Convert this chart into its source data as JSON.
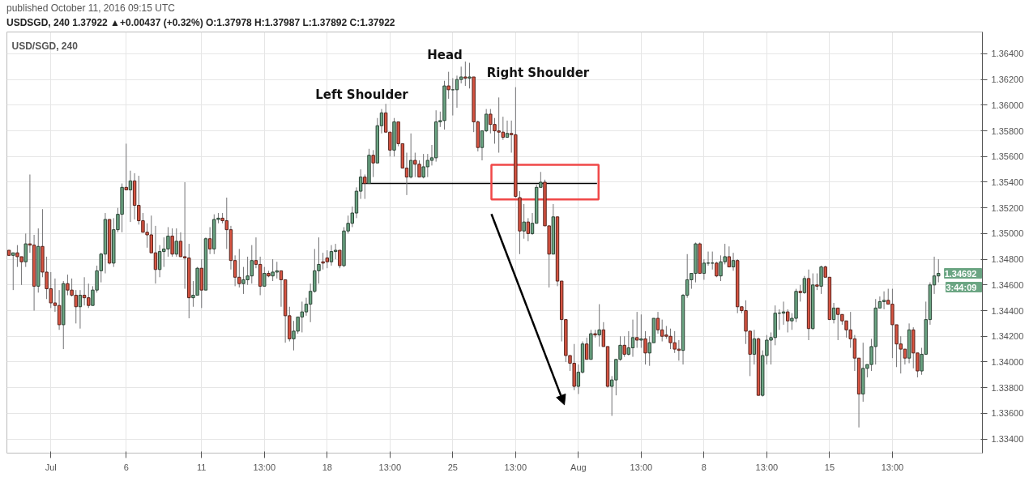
{
  "chart_data": {
    "type": "candlestick",
    "title": "published October 11, 2016 09:15 UTC",
    "subtitle": "USDSGD, 240  1.37922 ▲+0.00437 (+0.32%)  O:1.37978  H:1.37987  L:1.37892  C:1.37922",
    "categories": [
      null,
      null,
      null,
      null,
      null,
      null,
      null,
      null,
      null,
      null,
      "Jul",
      null,
      null,
      null,
      null,
      null,
      null,
      null,
      null,
      null,
      null,
      null,
      null,
      null,
      null,
      null,
      null,
      null,
      "6",
      null,
      null,
      null,
      null,
      null,
      null,
      null,
      null,
      null,
      null,
      null,
      null,
      null,
      null,
      null,
      null,
      null,
      "11",
      null,
      null,
      null,
      null,
      null,
      null,
      null,
      null,
      null,
      null,
      null,
      null,
      null,
      null,
      "13:00",
      null,
      null,
      null,
      null,
      null,
      null,
      null,
      null,
      null,
      null,
      null,
      null,
      null,
      null,
      "18",
      null,
      null,
      null,
      null,
      null,
      null,
      null,
      null,
      null,
      null,
      null,
      null,
      null,
      null,
      "13:00",
      null,
      null,
      null,
      null,
      null,
      null,
      null,
      null,
      null,
      null,
      null,
      null,
      null,
      null,
      "25",
      null,
      null,
      null,
      null,
      null,
      null,
      null,
      null,
      null,
      null,
      null,
      null,
      null,
      null,
      "13:00",
      null,
      null,
      null,
      null,
      null,
      null,
      null,
      null,
      null,
      null,
      null,
      null,
      null,
      null,
      "Aug",
      null,
      null,
      null,
      null,
      null,
      null,
      null,
      null,
      null,
      null,
      null,
      null,
      null,
      null,
      "13:00",
      null,
      null,
      null,
      null,
      null,
      null,
      null,
      null,
      null,
      null,
      null,
      null,
      null,
      null,
      "8",
      null,
      null,
      null,
      null,
      null,
      null,
      null,
      null,
      null,
      null,
      null,
      null,
      null,
      null,
      "13:00",
      null,
      null,
      null,
      null,
      null,
      null,
      null,
      null,
      null,
      null,
      null,
      null,
      null,
      null,
      "15",
      null,
      null,
      null,
      null,
      null,
      null,
      null,
      null,
      null,
      null,
      null,
      null,
      null,
      null,
      "13:00",
      null,
      null,
      null,
      null,
      null,
      null,
      null,
      null,
      null,
      null,
      null,
      null,
      null,
      null,
      null,
      null,
      null,
      null,
      null,
      null,
      null
    ],
    "ohlc": [
      [
        1.3487,
        1.3487,
        1.3483,
        1.3483
      ],
      [
        1.3483,
        1.3485,
        1.3456,
        1.3485
      ],
      [
        1.3485,
        1.3491,
        1.3474,
        1.3482
      ],
      [
        1.3482,
        1.3482,
        1.346,
        1.3478
      ],
      [
        1.3478,
        1.35,
        1.3474,
        1.3492
      ],
      [
        1.3492,
        1.3546,
        1.3485,
        1.3491
      ],
      [
        1.3491,
        1.3499,
        1.344,
        1.3459
      ],
      [
        1.3459,
        1.3504,
        1.3454,
        1.349
      ],
      [
        1.349,
        1.3519,
        1.3466,
        1.347
      ],
      [
        1.347,
        1.3482,
        1.3449,
        1.3457
      ],
      [
        1.3457,
        1.347,
        1.3442,
        1.3446
      ],
      [
        1.3446,
        1.3465,
        1.3439,
        1.3444
      ],
      [
        1.3444,
        1.3456,
        1.3425,
        1.3429
      ],
      [
        1.3429,
        1.3463,
        1.341,
        1.3461
      ],
      [
        1.3461,
        1.3468,
        1.3452,
        1.3456
      ],
      [
        1.3456,
        1.3465,
        1.3451,
        1.3452
      ],
      [
        1.3452,
        1.3456,
        1.343,
        1.3443
      ],
      [
        1.3443,
        1.3456,
        1.3426,
        1.3452
      ],
      [
        1.3452,
        1.3466,
        1.3444,
        1.345
      ],
      [
        1.345,
        1.3461,
        1.3442,
        1.3444
      ],
      [
        1.3444,
        1.3459,
        1.3444,
        1.3456
      ],
      [
        1.3456,
        1.3475,
        1.3454,
        1.3471
      ],
      [
        1.3471,
        1.3485,
        1.3462,
        1.3484
      ],
      [
        1.3484,
        1.3516,
        1.3469,
        1.3511
      ],
      [
        1.3511,
        1.3511,
        1.3476,
        1.3477
      ],
      [
        1.3477,
        1.3512,
        1.3474,
        1.3503
      ],
      [
        1.3503,
        1.352,
        1.3501,
        1.3515
      ],
      [
        1.3515,
        1.3539,
        1.3501,
        1.3536
      ],
      [
        1.3536,
        1.357,
        1.3534,
        1.3534
      ],
      [
        1.3534,
        1.3549,
        1.3509,
        1.3541
      ],
      [
        1.3541,
        1.3547,
        1.3511,
        1.3522
      ],
      [
        1.3522,
        1.3545,
        1.3507,
        1.351
      ],
      [
        1.351,
        1.3516,
        1.3501,
        1.3501
      ],
      [
        1.3501,
        1.3508,
        1.3489,
        1.3499
      ],
      [
        1.3499,
        1.3514,
        1.3485,
        1.3485
      ],
      [
        1.3485,
        1.3506,
        1.3461,
        1.3472
      ],
      [
        1.3472,
        1.3491,
        1.3466,
        1.3486
      ],
      [
        1.3486,
        1.3497,
        1.3474,
        1.3488
      ],
      [
        1.3488,
        1.3505,
        1.3482,
        1.3498
      ],
      [
        1.3498,
        1.3504,
        1.3482,
        1.3484
      ],
      [
        1.3484,
        1.3504,
        1.3482,
        1.3494
      ],
      [
        1.3494,
        1.3501,
        1.3482,
        1.3482
      ],
      [
        1.3482,
        1.354,
        1.3457,
        1.3481
      ],
      [
        1.3481,
        1.3492,
        1.3434,
        1.345
      ],
      [
        1.345,
        1.3463,
        1.3443,
        1.3452
      ],
      [
        1.3452,
        1.3474,
        1.3452,
        1.3473
      ],
      [
        1.3473,
        1.348,
        1.3442,
        1.3456
      ],
      [
        1.3456,
        1.3497,
        1.3456,
        1.3496
      ],
      [
        1.3496,
        1.3505,
        1.3484,
        1.3488
      ],
      [
        1.3488,
        1.3515,
        1.3484,
        1.3511
      ],
      [
        1.3511,
        1.3516,
        1.3508,
        1.3512
      ],
      [
        1.3512,
        1.3516,
        1.3508,
        1.351
      ],
      [
        1.351,
        1.3528,
        1.3488,
        1.3503
      ],
      [
        1.3503,
        1.3506,
        1.3472,
        1.3479
      ],
      [
        1.3479,
        1.3483,
        1.3459,
        1.3466
      ],
      [
        1.3466,
        1.3488,
        1.3458,
        1.3461
      ],
      [
        1.3461,
        1.3474,
        1.3453,
        1.3464
      ],
      [
        1.3464,
        1.3482,
        1.346,
        1.3467
      ],
      [
        1.3467,
        1.3491,
        1.3461,
        1.3479
      ],
      [
        1.3479,
        1.3497,
        1.3473,
        1.3476
      ],
      [
        1.3476,
        1.3482,
        1.3452,
        1.3459
      ],
      [
        1.3459,
        1.3474,
        1.3459,
        1.3469
      ],
      [
        1.3469,
        1.3471,
        1.3466,
        1.3467
      ],
      [
        1.3467,
        1.348,
        1.3463,
        1.347
      ],
      [
        1.347,
        1.3478,
        1.3465,
        1.3471
      ],
      [
        1.3471,
        1.3471,
        1.3443,
        1.3464
      ],
      [
        1.3464,
        1.3464,
        1.3415,
        1.3436
      ],
      [
        1.3436,
        1.3443,
        1.3416,
        1.3418
      ],
      [
        1.3418,
        1.3432,
        1.3409,
        1.3424
      ],
      [
        1.3424,
        1.3435,
        1.3422,
        1.3435
      ],
      [
        1.3435,
        1.3447,
        1.3423,
        1.3439
      ],
      [
        1.3439,
        1.345,
        1.3436,
        1.3445
      ],
      [
        1.3445,
        1.3461,
        1.3431,
        1.3455
      ],
      [
        1.3455,
        1.3488,
        1.3454,
        1.3471
      ],
      [
        1.3471,
        1.3497,
        1.3461,
        1.3476
      ],
      [
        1.3478,
        1.3485,
        1.3472,
        1.3477
      ],
      [
        1.3481,
        1.3487,
        1.3473,
        1.3478
      ],
      [
        1.3478,
        1.3491,
        1.3475,
        1.3486
      ],
      [
        1.3486,
        1.3492,
        1.348,
        1.3487
      ],
      [
        1.3487,
        1.3487,
        1.3473,
        1.3475
      ],
      [
        1.3475,
        1.3505,
        1.3474,
        1.3502
      ],
      [
        1.3502,
        1.3514,
        1.35,
        1.3508
      ],
      [
        1.3508,
        1.3521,
        1.3505,
        1.3516
      ],
      [
        1.3516,
        1.3536,
        1.3512,
        1.3533
      ],
      [
        1.3533,
        1.355,
        1.3527,
        1.3544
      ],
      [
        1.3544,
        1.3546,
        1.3527,
        1.3539
      ],
      [
        1.3539,
        1.3566,
        1.3539,
        1.3561
      ],
      [
        1.3561,
        1.3565,
        1.3544,
        1.3555
      ],
      [
        1.3555,
        1.359,
        1.3555,
        1.3584
      ],
      [
        1.3584,
        1.3597,
        1.3578,
        1.3594
      ],
      [
        1.3594,
        1.3601,
        1.3579,
        1.3579
      ],
      [
        1.3579,
        1.3579,
        1.356,
        1.3565
      ],
      [
        1.3565,
        1.359,
        1.356,
        1.3587
      ],
      [
        1.3587,
        1.3587,
        1.3568,
        1.357
      ],
      [
        1.357,
        1.357,
        1.3551,
        1.3551
      ],
      [
        1.3551,
        1.3563,
        1.353,
        1.3544
      ],
      [
        1.3544,
        1.3578,
        1.3543,
        1.3557
      ],
      [
        1.3557,
        1.3563,
        1.3544,
        1.3554
      ],
      [
        1.3554,
        1.3557,
        1.3544,
        1.3544
      ],
      [
        1.3544,
        1.3562,
        1.3543,
        1.3552
      ],
      [
        1.3552,
        1.3562,
        1.3544,
        1.3557
      ],
      [
        1.3557,
        1.3569,
        1.3553,
        1.3559
      ],
      [
        1.3559,
        1.3596,
        1.3556,
        1.3587
      ],
      [
        1.3587,
        1.3595,
        1.3583,
        1.3588
      ],
      [
        1.3588,
        1.3619,
        1.3581,
        1.3615
      ],
      [
        1.3615,
        1.3626,
        1.3605,
        1.3612
      ],
      [
        1.3612,
        1.3621,
        1.3592,
        1.3612
      ],
      [
        1.3612,
        1.3623,
        1.3598,
        1.362
      ],
      [
        1.362,
        1.363,
        1.3617,
        1.3622
      ],
      [
        1.3622,
        1.3634,
        1.3615,
        1.3621
      ],
      [
        1.3621,
        1.3633,
        1.3613,
        1.3622
      ],
      [
        1.3622,
        1.3622,
        1.3579,
        1.3587
      ],
      [
        1.3587,
        1.3588,
        1.3564,
        1.3567
      ],
      [
        1.3567,
        1.358,
        1.3557,
        1.358
      ],
      [
        1.358,
        1.3597,
        1.3579,
        1.3593
      ],
      [
        1.3593,
        1.3597,
        1.3578,
        1.3585
      ],
      [
        1.3585,
        1.359,
        1.357,
        1.358
      ],
      [
        1.358,
        1.3606,
        1.3563,
        1.3579
      ],
      [
        1.3579,
        1.3591,
        1.3573,
        1.3575
      ],
      [
        1.3575,
        1.3588,
        1.3575,
        1.3578
      ],
      [
        1.3578,
        1.3588,
        1.3563,
        1.3577
      ],
      [
        1.3577,
        1.3614,
        1.3528,
        1.3529
      ],
      [
        1.3528,
        1.3533,
        1.3484,
        1.3502
      ],
      [
        1.3502,
        1.3523,
        1.3496,
        1.3509
      ],
      [
        1.3509,
        1.3512,
        1.3494,
        1.35
      ],
      [
        1.35,
        1.3516,
        1.3499,
        1.3508
      ],
      [
        1.3508,
        1.3538,
        1.3508,
        1.3536
      ],
      [
        1.3536,
        1.3548,
        1.3536,
        1.354
      ],
      [
        1.354,
        1.3542,
        1.3506,
        1.3506
      ],
      [
        1.3506,
        1.3506,
        1.3458,
        1.3484
      ],
      [
        1.3484,
        1.3523,
        1.3484,
        1.3513
      ],
      [
        1.3513,
        1.3513,
        1.3459,
        1.3463
      ],
      [
        1.3463,
        1.3463,
        1.3416,
        1.3433
      ],
      [
        1.3433,
        1.3433,
        1.34,
        1.3405
      ],
      [
        1.3405,
        1.3405,
        1.3393,
        1.3399
      ],
      [
        1.3399,
        1.3414,
        1.3378,
        1.3381
      ],
      [
        1.3381,
        1.3398,
        1.3375,
        1.3392
      ],
      [
        1.3392,
        1.3416,
        1.3391,
        1.3414
      ],
      [
        1.3414,
        1.3419,
        1.3402,
        1.3402
      ],
      [
        1.3402,
        1.3425,
        1.3402,
        1.3422
      ],
      [
        1.3422,
        1.3425,
        1.3419,
        1.3421
      ],
      [
        1.3421,
        1.3445,
        1.3412,
        1.3425
      ],
      [
        1.3425,
        1.3431,
        1.3412,
        1.3412
      ],
      [
        1.3412,
        1.3412,
        1.338,
        1.3381
      ],
      [
        1.3381,
        1.3389,
        1.3358,
        1.3386
      ],
      [
        1.3386,
        1.3402,
        1.3374,
        1.3402
      ],
      [
        1.3402,
        1.342,
        1.3401,
        1.3413
      ],
      [
        1.3413,
        1.342,
        1.3404,
        1.3406
      ],
      [
        1.3406,
        1.3424,
        1.3405,
        1.3411
      ],
      [
        1.3411,
        1.3433,
        1.3404,
        1.3419
      ],
      [
        1.3419,
        1.3439,
        1.3411,
        1.3417
      ],
      [
        1.3417,
        1.3437,
        1.3411,
        1.3418
      ],
      [
        1.3418,
        1.3424,
        1.3398,
        1.3407
      ],
      [
        1.3407,
        1.342,
        1.3397,
        1.3415
      ],
      [
        1.3415,
        1.3434,
        1.3415,
        1.3434
      ],
      [
        1.3434,
        1.3439,
        1.3422,
        1.3425
      ],
      [
        1.3425,
        1.3433,
        1.3416,
        1.342
      ],
      [
        1.3421,
        1.3428,
        1.3418,
        1.342
      ],
      [
        1.342,
        1.3426,
        1.341,
        1.3415
      ],
      [
        1.3415,
        1.3424,
        1.3407,
        1.341
      ],
      [
        1.341,
        1.3417,
        1.3401,
        1.3409
      ],
      [
        1.3409,
        1.3453,
        1.3398,
        1.3452
      ],
      [
        1.3452,
        1.3484,
        1.345,
        1.3464
      ],
      [
        1.3464,
        1.3469,
        1.3457,
        1.3469
      ],
      [
        1.3469,
        1.3493,
        1.3462,
        1.3492
      ],
      [
        1.3492,
        1.3493,
        1.3469,
        1.3469
      ],
      [
        1.3469,
        1.348,
        1.3464,
        1.3477
      ],
      [
        1.3477,
        1.3486,
        1.3475,
        1.3477
      ],
      [
        1.3477,
        1.3486,
        1.3472,
        1.3477
      ],
      [
        1.3477,
        1.3478,
        1.3466,
        1.3467
      ],
      [
        1.3467,
        1.3483,
        1.3463,
        1.3478
      ],
      [
        1.3478,
        1.3492,
        1.3476,
        1.3482
      ],
      [
        1.3482,
        1.349,
        1.3474,
        1.3474
      ],
      [
        1.3474,
        1.3485,
        1.3471,
        1.3479
      ],
      [
        1.3479,
        1.348,
        1.3438,
        1.3443
      ],
      [
        1.3443,
        1.3443,
        1.3438,
        1.344
      ],
      [
        1.344,
        1.3448,
        1.3414,
        1.3424
      ],
      [
        1.3424,
        1.3424,
        1.3389,
        1.3406
      ],
      [
        1.3406,
        1.3425,
        1.3398,
        1.3418
      ],
      [
        1.3418,
        1.3419,
        1.3374,
        1.3374
      ],
      [
        1.3374,
        1.3409,
        1.3373,
        1.3405
      ],
      [
        1.3405,
        1.3421,
        1.3398,
        1.3417
      ],
      [
        1.3417,
        1.3423,
        1.3398,
        1.3419
      ],
      [
        1.3419,
        1.3444,
        1.3413,
        1.3438
      ],
      [
        1.3438,
        1.3441,
        1.3425,
        1.3438
      ],
      [
        1.3438,
        1.3447,
        1.3429,
        1.3439
      ],
      [
        1.3439,
        1.3441,
        1.3423,
        1.3432
      ],
      [
        1.3432,
        1.3438,
        1.3425,
        1.3434
      ],
      [
        1.3434,
        1.3457,
        1.3431,
        1.3455
      ],
      [
        1.3455,
        1.346,
        1.3447,
        1.3454
      ],
      [
        1.3454,
        1.3467,
        1.3453,
        1.3465
      ],
      [
        1.3465,
        1.3472,
        1.3417,
        1.3426
      ],
      [
        1.3426,
        1.3469,
        1.3425,
        1.346
      ],
      [
        1.346,
        1.3469,
        1.3456,
        1.3459
      ],
      [
        1.3459,
        1.3475,
        1.3453,
        1.3474
      ],
      [
        1.3474,
        1.3475,
        1.3466,
        1.3466
      ],
      [
        1.3466,
        1.3466,
        1.3433,
        1.3433
      ],
      [
        1.3433,
        1.3446,
        1.343,
        1.3442
      ],
      [
        1.3442,
        1.3442,
        1.3417,
        1.3437
      ],
      [
        1.3437,
        1.3437,
        1.3429,
        1.3432
      ],
      [
        1.3432,
        1.3432,
        1.3419,
        1.3425
      ],
      [
        1.3425,
        1.3439,
        1.3411,
        1.3418
      ],
      [
        1.3418,
        1.3421,
        1.3393,
        1.3403
      ],
      [
        1.3403,
        1.3403,
        1.3349,
        1.3375
      ],
      [
        1.3375,
        1.3415,
        1.3369,
        1.3395
      ],
      [
        1.3395,
        1.3398,
        1.3388,
        1.3398
      ],
      [
        1.3398,
        1.3418,
        1.3393,
        1.3412
      ],
      [
        1.3412,
        1.3449,
        1.3398,
        1.3442
      ],
      [
        1.3442,
        1.3451,
        1.3442,
        1.3447
      ],
      [
        1.3447,
        1.3455,
        1.3441,
        1.3448
      ],
      [
        1.3448,
        1.3457,
        1.3445,
        1.3445
      ],
      [
        1.3445,
        1.3457,
        1.3403,
        1.3429
      ],
      [
        1.3429,
        1.3429,
        1.3396,
        1.3414
      ],
      [
        1.3414,
        1.342,
        1.3391,
        1.341
      ],
      [
        1.341,
        1.341,
        1.3398,
        1.3403
      ],
      [
        1.3403,
        1.343,
        1.3399,
        1.3425
      ],
      [
        1.3425,
        1.3427,
        1.3395,
        1.3407
      ],
      [
        1.3407,
        1.3407,
        1.3388,
        1.3393
      ],
      [
        1.3393,
        1.3411,
        1.339,
        1.3406
      ],
      [
        1.3406,
        1.3447,
        1.3406,
        1.3433
      ],
      [
        1.3433,
        1.3462,
        1.3429,
        1.346
      ],
      [
        1.346,
        1.3482,
        1.3453,
        1.3467
      ],
      [
        1.3467,
        1.348,
        1.3462,
        1.3469
      ],
      null,
      null,
      null,
      null,
      null,
      null,
      null,
      null,
      null,
      null
    ],
    "ref_lines": [
      {
        "axis": "y",
        "value": 1.3539,
        "color": "#000000"
      }
    ],
    "ylim": [
      1.3329,
      1.3657
    ],
    "yticks": [
      {
        "value": 1.334,
        "label": "1.33400"
      },
      {
        "value": 1.336,
        "label": "1.33600"
      },
      {
        "value": 1.338,
        "label": "1.33800"
      },
      {
        "value": 1.34,
        "label": "1.34000"
      },
      {
        "value": 1.342,
        "label": "1.34200"
      },
      {
        "value": 1.344,
        "label": "1.34400"
      },
      {
        "value": 1.346,
        "label": "1.34600"
      },
      {
        "value": 1.348,
        "label": "1.34800"
      },
      {
        "value": 1.35,
        "label": "1.35000"
      },
      {
        "value": 1.352,
        "label": "1.35200"
      },
      {
        "value": 1.354,
        "label": "1.35400"
      },
      {
        "value": 1.356,
        "label": "1.35600"
      },
      {
        "value": 1.358,
        "label": "1.35800"
      },
      {
        "value": 1.36,
        "label": "1.36000"
      },
      {
        "value": 1.362,
        "label": "1.36200"
      },
      {
        "value": 1.364,
        "label": "1.36400"
      }
    ],
    "grid": true,
    "annotations": [
      "USD/SGD, 240",
      "Left Shoulder",
      "Head",
      "Right Shoulder",
      "1.34692",
      "3:44:09"
    ]
  }
}
